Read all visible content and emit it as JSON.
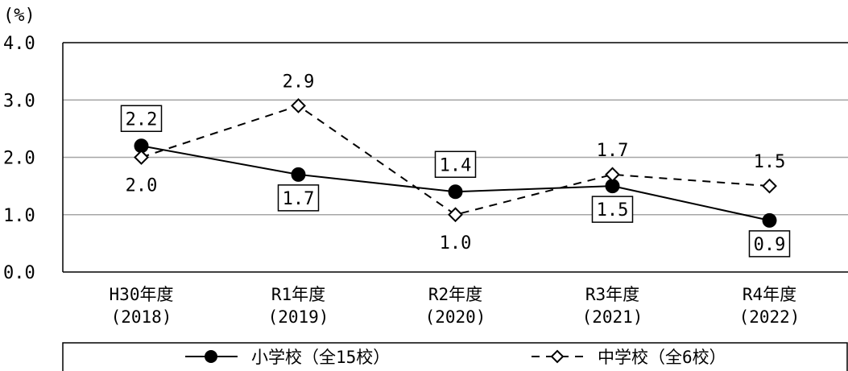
{
  "chart_data": {
    "type": "line",
    "ylabel": "(%)",
    "ylim": [
      0,
      4
    ],
    "yticks": [
      "0.0",
      "1.0",
      "2.0",
      "3.0",
      "4.0"
    ],
    "categories": [
      [
        "H30年度",
        "(2018)"
      ],
      [
        "R1年度",
        "(2019)"
      ],
      [
        "R2年度",
        "(2020)"
      ],
      [
        "R3年度",
        "(2021)"
      ],
      [
        "R4年度",
        "(2022)"
      ]
    ],
    "series": [
      {
        "name": "小学校（全15校）",
        "values": [
          2.2,
          1.7,
          1.4,
          1.5,
          0.9
        ],
        "labels": [
          "2.2",
          "1.7",
          "1.4",
          "1.5",
          "0.9"
        ],
        "label_pos": [
          "above",
          "below",
          "above",
          "below",
          "below"
        ],
        "style": "solid",
        "marker": "circle",
        "boxed_labels": true
      },
      {
        "name": "中学校（全6校）",
        "values": [
          2.0,
          2.9,
          1.0,
          1.7,
          1.5
        ],
        "labels": [
          "2.0",
          "2.9",
          "1.0",
          "1.7",
          "1.5"
        ],
        "label_pos": [
          "below",
          "above",
          "below",
          "above",
          "above"
        ],
        "style": "dashed",
        "marker": "diamond",
        "boxed_labels": false
      }
    ],
    "grid": true,
    "legend_position": "bottom"
  }
}
